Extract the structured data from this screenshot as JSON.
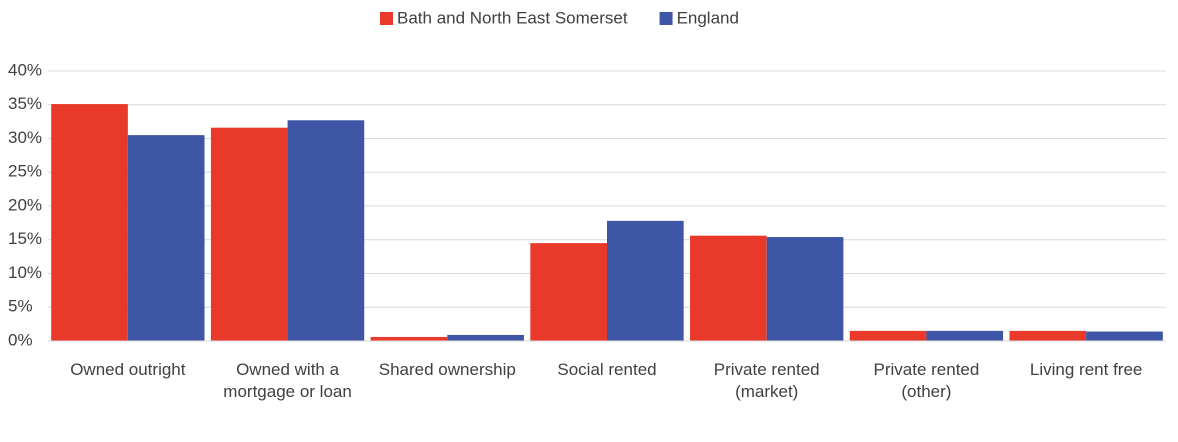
{
  "chart_data": {
    "type": "bar",
    "categories": [
      "Owned outright",
      "Owned with a mortgage or loan",
      "Shared ownership",
      "Social rented",
      "Private rented (market)",
      "Private rented (other)",
      "Living rent free"
    ],
    "series": [
      {
        "name": "Bath and North East Somerset",
        "color": "#e8392a",
        "values": [
          35.1,
          31.6,
          0.6,
          14.5,
          15.6,
          1.5,
          1.5
        ]
      },
      {
        "name": "England",
        "color": "#3f56a6",
        "values": [
          30.5,
          32.7,
          0.9,
          17.8,
          15.4,
          1.5,
          1.4
        ]
      }
    ],
    "ylim": [
      0,
      40
    ],
    "yticks": [
      {
        "value": 0,
        "label": "0%"
      },
      {
        "value": 5,
        "label": "5%"
      },
      {
        "value": 10,
        "label": "10%"
      },
      {
        "value": 15,
        "label": "15%"
      },
      {
        "value": 20,
        "label": "20%"
      },
      {
        "value": 25,
        "label": "25%"
      },
      {
        "value": 30,
        "label": "30%"
      },
      {
        "value": 35,
        "label": "35%"
      },
      {
        "value": 40,
        "label": "40%"
      }
    ],
    "grid": true,
    "legend": "top"
  }
}
